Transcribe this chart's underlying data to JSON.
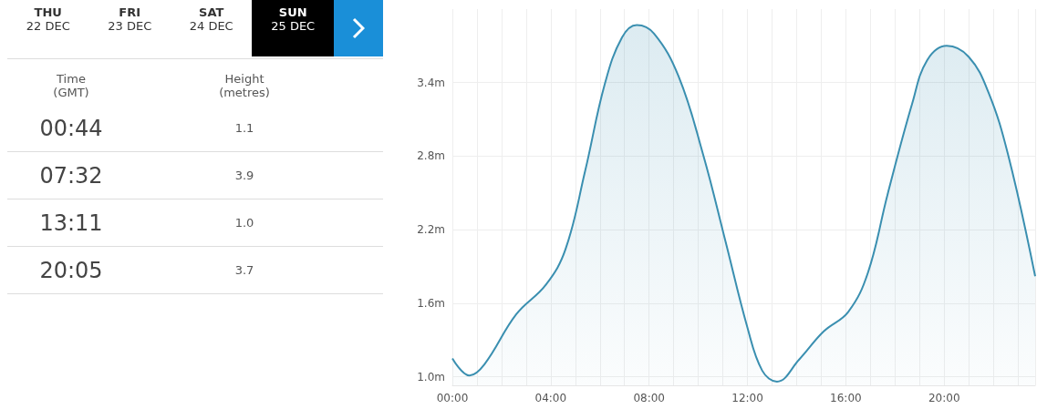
{
  "chart_data": [
    {
      "type": "other",
      "annotations": [
        "THU",
        "22 DEC",
        "FRI",
        "23 DEC",
        "SAT",
        "24 DEC",
        "SUN",
        "25 DEC",
        "Time",
        "(GMT)",
        "Height",
        "(metres)",
        "00:44",
        "1.1",
        "07:32",
        "3.9",
        "13:11",
        "1.0",
        "20:05",
        "3.7"
      ]
    },
    {
      "type": "area",
      "color": "#3a8fb0",
      "grid": true,
      "marker": "none",
      "x": [
        0,
        0.7,
        1.3,
        2.6,
        3.8,
        4.6,
        5.4,
        6.2,
        6.9,
        7.5,
        8.2,
        9.2,
        10.2,
        11.1,
        12.0,
        12.6,
        13.2,
        14.1,
        15.1,
        16.1,
        16.9,
        17.7,
        18.7,
        19.3,
        20.1,
        21.0,
        21.8,
        22.6,
        23.7
      ],
      "values": [
        1.15,
        1.01,
        1.1,
        1.51,
        1.75,
        2.04,
        2.68,
        3.39,
        3.77,
        3.87,
        3.8,
        3.45,
        2.81,
        2.11,
        1.4,
        1.05,
        0.96,
        1.14,
        1.37,
        1.53,
        1.85,
        2.49,
        3.23,
        3.58,
        3.7,
        3.61,
        3.32,
        2.81,
        1.82
      ],
      "xlim": [
        0,
        23.7
      ],
      "ylim": [
        0.93,
        4.0
      ],
      "xticks": [
        {
          "value": 0,
          "label": "00:00"
        },
        {
          "value": 1,
          "label": null
        },
        {
          "value": 2,
          "label": null
        },
        {
          "value": 3,
          "label": null
        },
        {
          "value": 4,
          "label": "04:00"
        },
        {
          "value": 5,
          "label": null
        },
        {
          "value": 6,
          "label": null
        },
        {
          "value": 7,
          "label": null
        },
        {
          "value": 8,
          "label": "08:00"
        },
        {
          "value": 9,
          "label": null
        },
        {
          "value": 10,
          "label": null
        },
        {
          "value": 11,
          "label": null
        },
        {
          "value": 12,
          "label": "12:00"
        },
        {
          "value": 13,
          "label": null
        },
        {
          "value": 14,
          "label": null
        },
        {
          "value": 15,
          "label": null
        },
        {
          "value": 16,
          "label": "16:00"
        },
        {
          "value": 17,
          "label": null
        },
        {
          "value": 18,
          "label": null
        },
        {
          "value": 19,
          "label": null
        },
        {
          "value": 20,
          "label": "20:00"
        },
        {
          "value": 21,
          "label": null
        },
        {
          "value": 22,
          "label": null
        },
        {
          "value": 23,
          "label": null
        }
      ],
      "yticks": [
        {
          "value": 1.0,
          "label": "1.0m"
        },
        {
          "value": 1.6,
          "label": "1.6m"
        },
        {
          "value": 2.2,
          "label": "2.2m"
        },
        {
          "value": 2.8,
          "label": "2.8m"
        },
        {
          "value": 3.4,
          "label": "3.4m"
        }
      ]
    }
  ]
}
